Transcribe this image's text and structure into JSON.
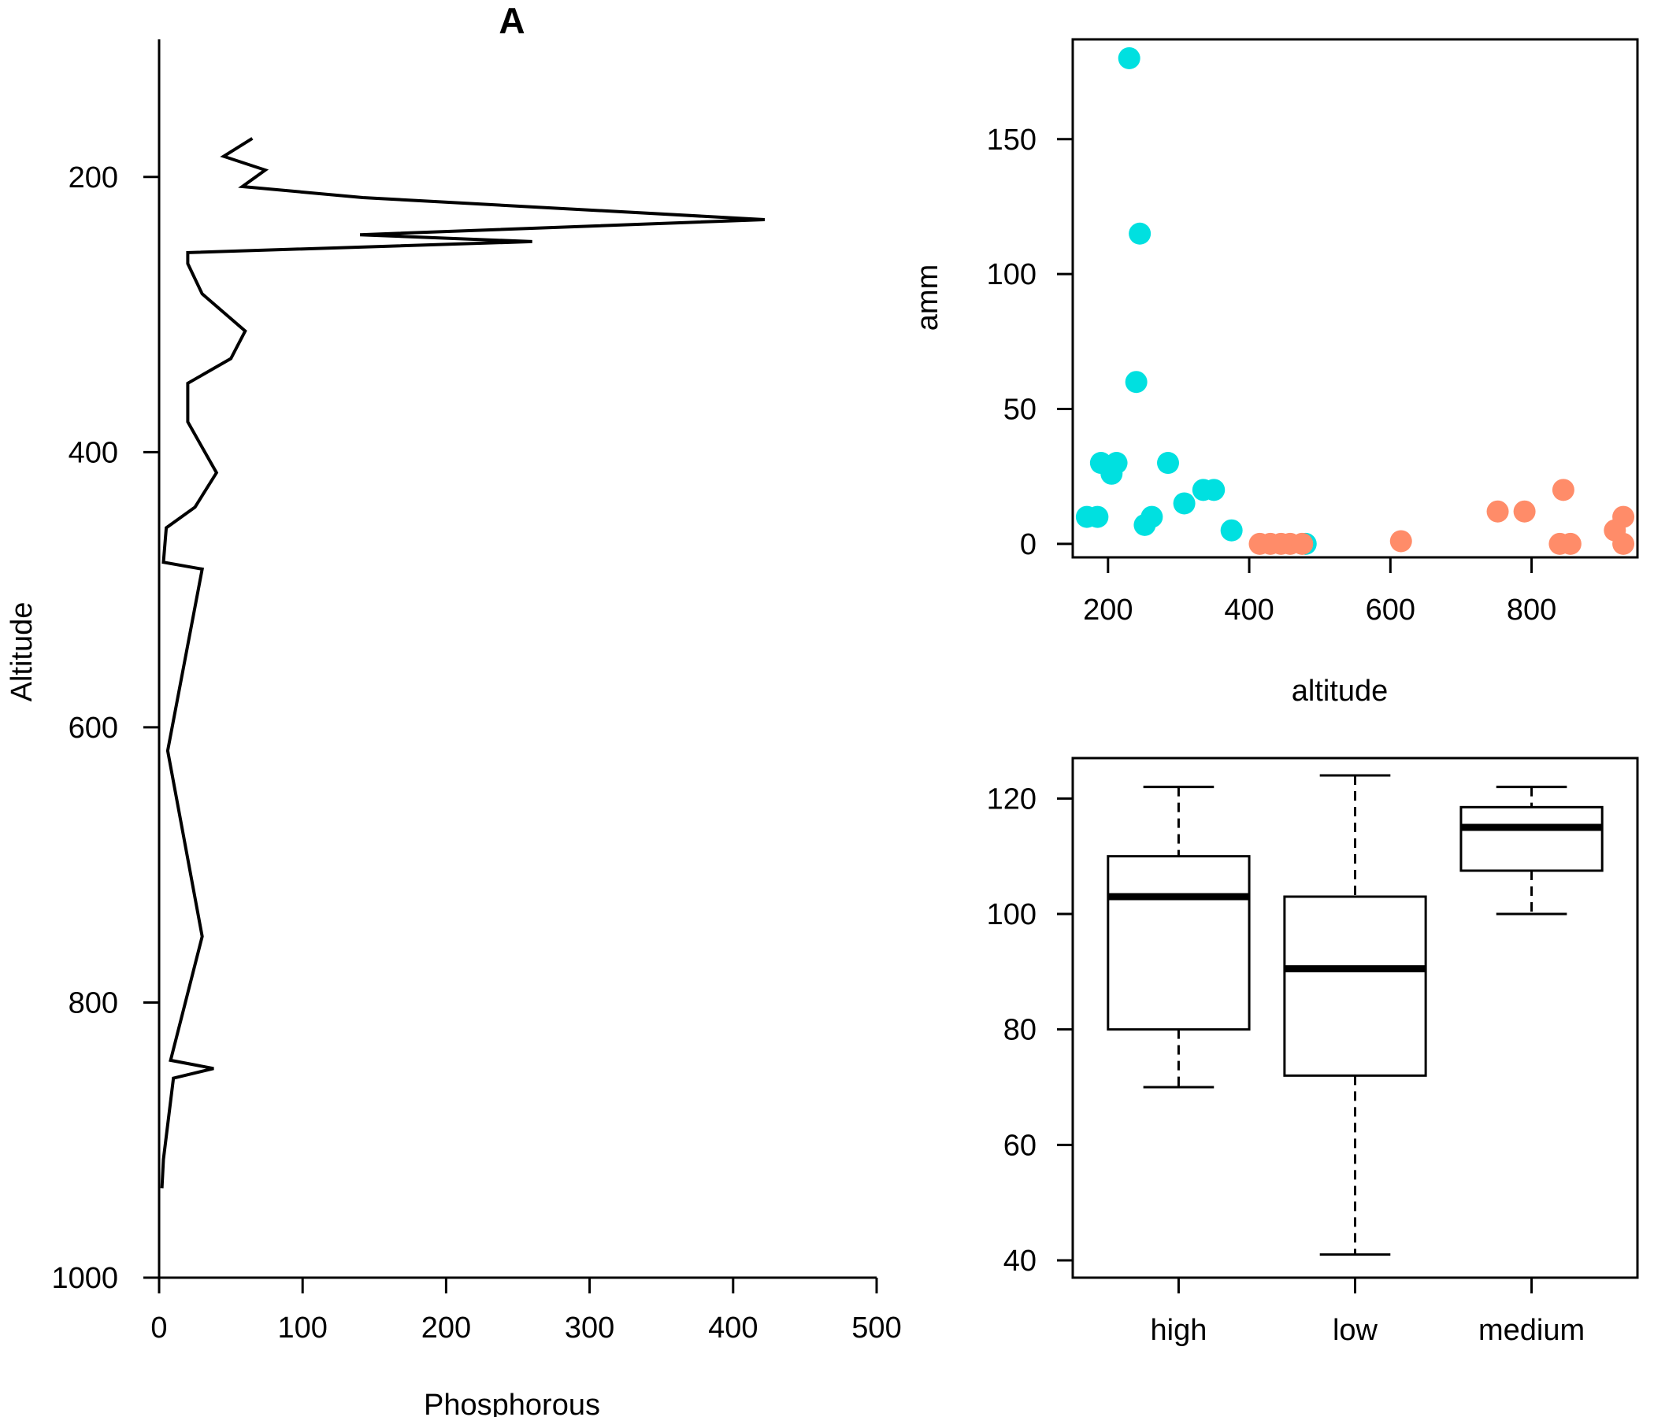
{
  "chart_data": [
    {
      "type": "line",
      "title": "A",
      "xlabel": "Phosphorous",
      "ylabel": "Altitude",
      "xlim": [
        0,
        500
      ],
      "ylim": [
        1000,
        100
      ],
      "y_reversed": true,
      "xticks": [
        0,
        100,
        200,
        300,
        400,
        500
      ],
      "yticks": [
        200,
        400,
        600,
        800,
        1000
      ],
      "grid": false,
      "line_color": "#000000",
      "series": [
        {
          "points": [
            [
              65,
              172
            ],
            [
              45,
              185
            ],
            [
              74,
              195
            ],
            [
              58,
              207
            ],
            [
              142,
              215
            ],
            [
              422,
              231
            ],
            [
              140,
              242
            ],
            [
              260,
              247
            ],
            [
              20,
              255
            ],
            [
              20,
              263
            ],
            [
              30,
              285
            ],
            [
              60,
              312
            ],
            [
              50,
              332
            ],
            [
              20,
              350
            ],
            [
              20,
              378
            ],
            [
              40,
              415
            ],
            [
              25,
              440
            ],
            [
              5,
              455
            ],
            [
              3,
              480
            ],
            [
              30,
              485
            ],
            [
              6,
              617
            ],
            [
              30,
              752
            ],
            [
              8,
              842
            ],
            [
              38,
              848
            ],
            [
              10,
              855
            ],
            [
              3,
              914
            ],
            [
              2,
              935
            ]
          ]
        }
      ]
    },
    {
      "type": "scatter",
      "title": "",
      "xlabel": "altitude",
      "ylabel": "amm",
      "xlim": [
        150,
        950
      ],
      "ylim": [
        -5,
        187
      ],
      "xticks": [
        200,
        400,
        600,
        800
      ],
      "yticks": [
        0,
        50,
        100,
        150
      ],
      "grid": false,
      "boxed": true,
      "series": [
        {
          "color": "#00E0E0",
          "points": [
            [
              230,
              180
            ],
            [
              245,
              115
            ],
            [
              240,
              60
            ],
            [
              190,
              30
            ],
            [
              212,
              30
            ],
            [
              285,
              30
            ],
            [
              205,
              26
            ],
            [
              335,
              20
            ],
            [
              350,
              20
            ],
            [
              308,
              15
            ],
            [
              170,
              10
            ],
            [
              185,
              10
            ],
            [
              262,
              10
            ],
            [
              252,
              7
            ],
            [
              375,
              5
            ],
            [
              480,
              0
            ]
          ]
        },
        {
          "color": "#FF8C69",
          "points": [
            [
              415,
              0
            ],
            [
              430,
              0
            ],
            [
              445,
              0
            ],
            [
              458,
              0
            ],
            [
              475,
              0
            ],
            [
              615,
              1
            ],
            [
              752,
              12
            ],
            [
              790,
              12
            ],
            [
              845,
              20
            ],
            [
              840,
              0
            ],
            [
              855,
              0
            ],
            [
              918,
              5
            ],
            [
              930,
              10
            ],
            [
              930,
              0
            ]
          ]
        }
      ]
    },
    {
      "type": "box",
      "title": "",
      "xlabel": "",
      "ylabel": "",
      "categories": [
        "high",
        "low",
        "medium"
      ],
      "ylim": [
        37,
        127
      ],
      "yticks": [
        40,
        60,
        80,
        100,
        120
      ],
      "grid": false,
      "boxed": true,
      "boxes": [
        {
          "min": 70,
          "q1": 80,
          "median": 103,
          "q3": 110,
          "max": 122
        },
        {
          "min": 41,
          "q1": 72,
          "median": 90.5,
          "q3": 103,
          "max": 124
        },
        {
          "min": 100,
          "q1": 107.5,
          "median": 115,
          "q3": 118.5,
          "max": 122
        }
      ]
    }
  ]
}
